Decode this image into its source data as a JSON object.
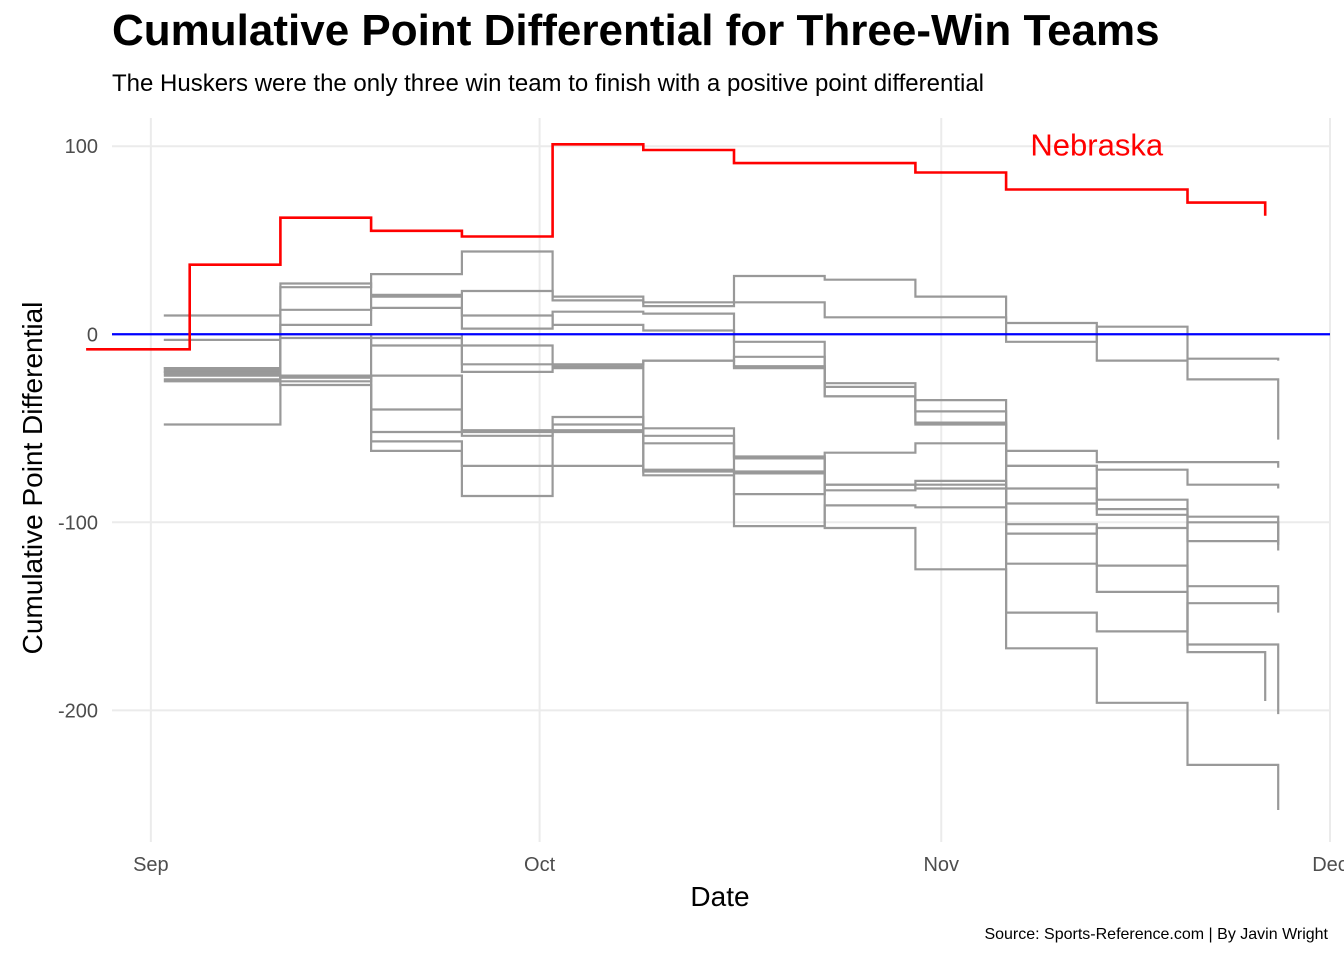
{
  "header": {
    "title": "Cumulative Point Differential for Three-Win Teams",
    "subtitle": "The Huskers were the only three win team to finish with a positive point differential"
  },
  "footer": {
    "caption": "Source: Sports-Reference.com | By Javin Wright"
  },
  "chart_data": {
    "type": "line",
    "step": true,
    "xlabel": "Date",
    "ylabel": "Cumulative Point Differential",
    "xlim": [
      "2018-08-29",
      "2018-12-01"
    ],
    "ylim": [
      -270,
      115
    ],
    "x_ticks": [
      {
        "date": "2018-09-01",
        "label": "Sep"
      },
      {
        "date": "2018-10-01",
        "label": "Oct"
      },
      {
        "date": "2018-11-01",
        "label": "Nov"
      },
      {
        "date": "2018-12-01",
        "label": "Dec"
      }
    ],
    "y_ticks": [
      100,
      0,
      -100,
      -200
    ],
    "grid": true,
    "legend": "none",
    "reference_line": {
      "y": 0,
      "color": "#0000ff"
    },
    "highlight": {
      "label": "Nebraska",
      "color": "#ff0000",
      "label_x": "2018-11-13",
      "label_y": 95,
      "points": [
        [
          "2018-08-27",
          -8
        ],
        [
          "2018-09-04",
          37
        ],
        [
          "2018-09-11",
          62
        ],
        [
          "2018-09-18",
          55
        ],
        [
          "2018-09-25",
          52
        ],
        [
          "2018-10-02",
          101
        ],
        [
          "2018-10-09",
          98
        ],
        [
          "2018-10-16",
          91
        ],
        [
          "2018-10-30",
          86
        ],
        [
          "2018-11-06",
          77
        ],
        [
          "2018-11-20",
          70
        ],
        [
          "2018-11-26",
          63
        ]
      ]
    },
    "other_color": "#999999",
    "series": [
      {
        "values": [
          [
            "2018-09-02",
            -20
          ],
          [
            "2018-09-11",
            25
          ],
          [
            "2018-09-18",
            32
          ],
          [
            "2018-09-25",
            44
          ],
          [
            "2018-10-02",
            20
          ],
          [
            "2018-10-09",
            17
          ],
          [
            "2018-10-16",
            31
          ],
          [
            "2018-10-23",
            29
          ],
          [
            "2018-10-30",
            20
          ],
          [
            "2018-11-06",
            6
          ],
          [
            "2018-11-13",
            -14
          ],
          [
            "2018-11-20",
            -24
          ],
          [
            "2018-11-27",
            -56
          ]
        ]
      },
      {
        "values": [
          [
            "2018-09-02",
            -48
          ],
          [
            "2018-09-11",
            27
          ],
          [
            "2018-09-18",
            21
          ],
          [
            "2018-09-25",
            23
          ],
          [
            "2018-10-02",
            18
          ],
          [
            "2018-10-09",
            15
          ],
          [
            "2018-10-16",
            17
          ],
          [
            "2018-10-23",
            9
          ],
          [
            "2018-10-30",
            9
          ],
          [
            "2018-11-06",
            -4
          ],
          [
            "2018-11-13",
            4
          ],
          [
            "2018-11-20",
            -13
          ],
          [
            "2018-11-27",
            -14
          ]
        ]
      },
      {
        "values": [
          [
            "2018-09-02",
            10
          ],
          [
            "2018-09-11",
            13
          ],
          [
            "2018-09-18",
            20
          ],
          [
            "2018-09-25",
            3
          ],
          [
            "2018-10-02",
            12
          ],
          [
            "2018-10-09",
            11
          ],
          [
            "2018-10-16",
            -18
          ],
          [
            "2018-10-23",
            -33
          ],
          [
            "2018-10-30",
            -48
          ],
          [
            "2018-11-06",
            -62
          ],
          [
            "2018-11-13",
            -68
          ],
          [
            "2018-11-20",
            -68
          ],
          [
            "2018-11-27",
            -71
          ]
        ]
      },
      {
        "values": [
          [
            "2018-09-02",
            -25
          ],
          [
            "2018-09-11",
            -25
          ],
          [
            "2018-09-18",
            -2
          ],
          [
            "2018-09-25",
            -6
          ],
          [
            "2018-10-02",
            -16
          ],
          [
            "2018-10-09",
            -14
          ],
          [
            "2018-10-16",
            -12
          ],
          [
            "2018-10-23",
            -28
          ],
          [
            "2018-10-30",
            -41
          ],
          [
            "2018-11-06",
            -70
          ],
          [
            "2018-11-13",
            -72
          ],
          [
            "2018-11-20",
            -80
          ],
          [
            "2018-11-27",
            -82
          ]
        ]
      },
      {
        "values": [
          [
            "2018-09-02",
            -18
          ],
          [
            "2018-09-11",
            5
          ],
          [
            "2018-09-18",
            14
          ],
          [
            "2018-09-25",
            10
          ],
          [
            "2018-10-02",
            5
          ],
          [
            "2018-10-09",
            2
          ],
          [
            "2018-10-16",
            -4
          ],
          [
            "2018-10-23",
            -26
          ],
          [
            "2018-10-30",
            -35
          ],
          [
            "2018-11-06",
            -82
          ],
          [
            "2018-11-13",
            -93
          ],
          [
            "2018-11-20",
            -97
          ],
          [
            "2018-11-27",
            -115
          ]
        ]
      },
      {
        "values": [
          [
            "2018-09-02",
            -20
          ],
          [
            "2018-09-11",
            0
          ],
          [
            "2018-09-18",
            -6
          ],
          [
            "2018-09-25",
            -20
          ],
          [
            "2018-10-02",
            -17
          ],
          [
            "2018-10-09",
            -14
          ],
          [
            "2018-10-16",
            -17
          ],
          [
            "2018-10-23",
            -33
          ],
          [
            "2018-10-30",
            -47
          ],
          [
            "2018-11-06",
            -106
          ],
          [
            "2018-11-13",
            -103
          ],
          [
            "2018-11-20",
            -100
          ],
          [
            "2018-11-27",
            -110
          ]
        ]
      },
      {
        "values": [
          [
            "2018-09-02",
            -3
          ],
          [
            "2018-09-11",
            -2
          ],
          [
            "2018-09-18",
            0
          ],
          [
            "2018-09-25",
            -16
          ],
          [
            "2018-10-02",
            -18
          ],
          [
            "2018-10-09",
            -54
          ],
          [
            "2018-10-16",
            -66
          ],
          [
            "2018-10-23",
            -83
          ],
          [
            "2018-10-30",
            -80
          ],
          [
            "2018-11-06",
            -90
          ],
          [
            "2018-11-13",
            -96
          ],
          [
            "2018-11-20",
            -110
          ],
          [
            "2018-11-27",
            -112
          ]
        ]
      },
      {
        "values": [
          [
            "2018-09-02",
            -19
          ],
          [
            "2018-09-11",
            -23
          ],
          [
            "2018-09-18",
            -52
          ],
          [
            "2018-09-25",
            -51
          ],
          [
            "2018-10-02",
            -48
          ],
          [
            "2018-10-09",
            -72
          ],
          [
            "2018-10-16",
            -74
          ],
          [
            "2018-10-23",
            -80
          ],
          [
            "2018-10-30",
            -82
          ],
          [
            "2018-11-06",
            -101
          ],
          [
            "2018-11-13",
            -123
          ],
          [
            "2018-11-20",
            -134
          ],
          [
            "2018-11-27",
            -148
          ]
        ]
      },
      {
        "values": [
          [
            "2018-09-02",
            -24
          ],
          [
            "2018-09-11",
            -27
          ],
          [
            "2018-09-18",
            -62
          ],
          [
            "2018-09-25",
            -86
          ],
          [
            "2018-10-02",
            -44
          ],
          [
            "2018-10-09",
            -50
          ],
          [
            "2018-10-16",
            -65
          ],
          [
            "2018-10-23",
            -103
          ],
          [
            "2018-10-30",
            -125
          ],
          [
            "2018-11-06",
            -148
          ],
          [
            "2018-11-13",
            -158
          ],
          [
            "2018-11-20",
            -143
          ],
          [
            "2018-11-27",
            -143
          ]
        ]
      },
      {
        "values": [
          [
            "2018-09-02",
            -22
          ],
          [
            "2018-09-11",
            -22
          ],
          [
            "2018-09-18",
            -57
          ],
          [
            "2018-09-25",
            -70
          ],
          [
            "2018-10-02",
            -70
          ],
          [
            "2018-10-09",
            -75
          ],
          [
            "2018-10-16",
            -102
          ],
          [
            "2018-10-23",
            -91
          ],
          [
            "2018-10-30",
            -92
          ],
          [
            "2018-11-06",
            -167
          ],
          [
            "2018-11-13",
            -196
          ],
          [
            "2018-11-20",
            -229
          ],
          [
            "2018-11-27",
            -253
          ]
        ]
      },
      {
        "values": [
          [
            "2018-09-02",
            -21
          ],
          [
            "2018-09-11",
            -23
          ],
          [
            "2018-09-18",
            -22
          ],
          [
            "2018-09-25",
            -52
          ],
          [
            "2018-10-02",
            -52
          ],
          [
            "2018-10-09",
            -58
          ],
          [
            "2018-10-16",
            -85
          ],
          [
            "2018-10-23",
            -80
          ],
          [
            "2018-10-30",
            -78
          ],
          [
            "2018-11-06",
            -122
          ],
          [
            "2018-11-13",
            -137
          ],
          [
            "2018-11-20",
            -169
          ],
          [
            "2018-11-26",
            -195
          ]
        ]
      },
      {
        "values": [
          [
            "2018-09-02",
            -18
          ],
          [
            "2018-09-11",
            -23
          ],
          [
            "2018-09-18",
            -40
          ],
          [
            "2018-09-25",
            -54
          ],
          [
            "2018-10-02",
            -51
          ],
          [
            "2018-10-09",
            -73
          ],
          [
            "2018-10-16",
            -73
          ],
          [
            "2018-10-23",
            -63
          ],
          [
            "2018-10-30",
            -58
          ],
          [
            "2018-11-06",
            -70
          ],
          [
            "2018-11-13",
            -88
          ],
          [
            "2018-11-20",
            -165
          ],
          [
            "2018-11-27",
            -202
          ]
        ]
      }
    ]
  }
}
